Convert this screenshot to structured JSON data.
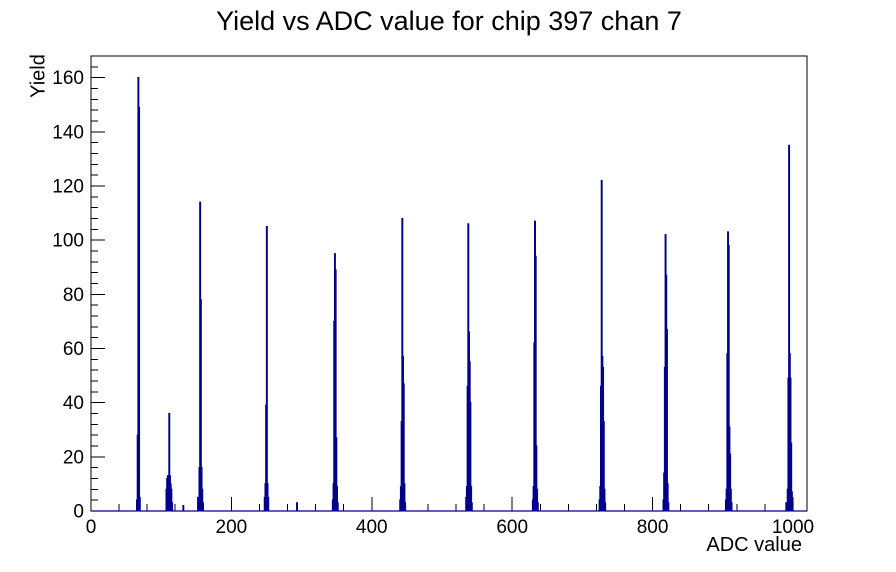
{
  "chart_data": {
    "type": "bar",
    "title": "Yield vs ADC value for chip 397 chan 7",
    "xlabel": "ADC value",
    "ylabel": "Yield",
    "xlim": [
      0,
      1020
    ],
    "ylim": [
      0,
      168
    ],
    "x_major_ticks": [
      0,
      200,
      400,
      600,
      800,
      1000
    ],
    "x_minor_step": 40,
    "y_major_ticks": [
      0,
      20,
      40,
      60,
      80,
      100,
      120,
      140,
      160
    ],
    "y_minor_step": 4,
    "grid": false,
    "legend": false,
    "line_color": "#00008b",
    "axis_color": "#000000",
    "background_color": "#ffffff",
    "bin_width": 1,
    "peaks": [
      {
        "adc": 67,
        "yield": 160
      },
      {
        "adc": 111,
        "yield": 36
      },
      {
        "adc": 155,
        "yield": 114
      },
      {
        "adc": 250,
        "yield": 105
      },
      {
        "adc": 347,
        "yield": 95
      },
      {
        "adc": 443,
        "yield": 108
      },
      {
        "adc": 537,
        "yield": 106
      },
      {
        "adc": 632,
        "yield": 107
      },
      {
        "adc": 727,
        "yield": 122
      },
      {
        "adc": 818,
        "yield": 102
      },
      {
        "adc": 907,
        "yield": 103
      },
      {
        "adc": 994,
        "yield": 135
      }
    ],
    "bins": [
      [
        65,
        4
      ],
      [
        66,
        28
      ],
      [
        67,
        160
      ],
      [
        68,
        149
      ],
      [
        69,
        5
      ],
      [
        107,
        8
      ],
      [
        108,
        12
      ],
      [
        109,
        13
      ],
      [
        110,
        10
      ],
      [
        111,
        36
      ],
      [
        112,
        13
      ],
      [
        113,
        10
      ],
      [
        114,
        8
      ],
      [
        115,
        3
      ],
      [
        131,
        2
      ],
      [
        152,
        5
      ],
      [
        153,
        2
      ],
      [
        154,
        16
      ],
      [
        155,
        114
      ],
      [
        156,
        78
      ],
      [
        157,
        16
      ],
      [
        158,
        8
      ],
      [
        159,
        3
      ],
      [
        247,
        5
      ],
      [
        248,
        10
      ],
      [
        249,
        39
      ],
      [
        250,
        105
      ],
      [
        251,
        10
      ],
      [
        252,
        5
      ],
      [
        293,
        3
      ],
      [
        344,
        4
      ],
      [
        345,
        10
      ],
      [
        346,
        70
      ],
      [
        347,
        95
      ],
      [
        348,
        89
      ],
      [
        349,
        27
      ],
      [
        350,
        9
      ],
      [
        351,
        3
      ],
      [
        440,
        4
      ],
      [
        441,
        9
      ],
      [
        442,
        33
      ],
      [
        443,
        108
      ],
      [
        444,
        57
      ],
      [
        445,
        47
      ],
      [
        446,
        10
      ],
      [
        447,
        3
      ],
      [
        534,
        5
      ],
      [
        535,
        9
      ],
      [
        536,
        46
      ],
      [
        537,
        106
      ],
      [
        538,
        66
      ],
      [
        539,
        55
      ],
      [
        540,
        40
      ],
      [
        541,
        9
      ],
      [
        542,
        3
      ],
      [
        629,
        4
      ],
      [
        630,
        9
      ],
      [
        631,
        62
      ],
      [
        632,
        107
      ],
      [
        633,
        94
      ],
      [
        634,
        24
      ],
      [
        635,
        8
      ],
      [
        636,
        3
      ],
      [
        724,
        4
      ],
      [
        725,
        9
      ],
      [
        726,
        46
      ],
      [
        727,
        122
      ],
      [
        728,
        57
      ],
      [
        729,
        53
      ],
      [
        730,
        33
      ],
      [
        731,
        8
      ],
      [
        732,
        3
      ],
      [
        815,
        4
      ],
      [
        816,
        14
      ],
      [
        817,
        53
      ],
      [
        818,
        102
      ],
      [
        819,
        87
      ],
      [
        820,
        67
      ],
      [
        821,
        10
      ],
      [
        822,
        3
      ],
      [
        904,
        4
      ],
      [
        905,
        8
      ],
      [
        906,
        58
      ],
      [
        907,
        103
      ],
      [
        908,
        98
      ],
      [
        909,
        31
      ],
      [
        910,
        21
      ],
      [
        911,
        8
      ],
      [
        912,
        3
      ],
      [
        990,
        3
      ],
      [
        992,
        8
      ],
      [
        993,
        49
      ],
      [
        994,
        135
      ],
      [
        995,
        58
      ],
      [
        996,
        49
      ],
      [
        997,
        25
      ],
      [
        998,
        7
      ],
      [
        999,
        3
      ]
    ]
  }
}
